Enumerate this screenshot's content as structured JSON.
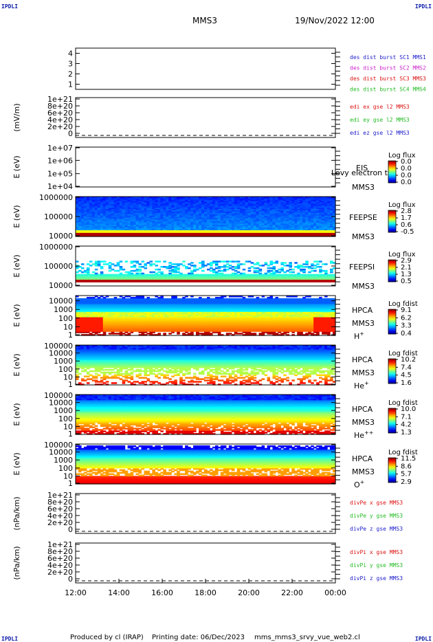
{
  "corner_tag": "IPDLI",
  "header": {
    "spacecraft": "MMS3",
    "datetime": "19/Nov/2022 12:00"
  },
  "footer": {
    "producer": "Produced by cl (IRAP)",
    "printing": "Printing date: 06/Dec/2023",
    "filename": "mms_mms3_srvy_vue_web2.cl"
  },
  "colors": {
    "blue": "#1a1acc",
    "magenta": "#cc22cc",
    "red": "#dd1111",
    "green": "#22bb22"
  },
  "chart_data": [
    {
      "type": "line",
      "panel": "burst",
      "yticks": [
        "4",
        "3",
        "2",
        "1"
      ],
      "ylim": [
        0.5,
        4.5
      ],
      "legend": [
        {
          "label": "des dist burst SC1 MMS1",
          "color": "#1a1acc"
        },
        {
          "label": "des dist burst SC2 MMS2",
          "color": "#cc22cc"
        },
        {
          "label": "des dist burst SC3 MMS3",
          "color": "#dd1111"
        },
        {
          "label": "des dist burst SC4 MMS4",
          "color": "#22bb22"
        }
      ],
      "series": []
    },
    {
      "type": "line",
      "panel": "edi",
      "ylabel": "(mV/m)",
      "yticks": [
        "1e+21",
        "8e+20",
        "6e+20",
        "4e+20",
        "2e+20",
        "0"
      ],
      "ylim": [
        0,
        1e+21
      ],
      "dashed_zero": true,
      "legend": [
        {
          "label": "edi ex gse l2 MMS3",
          "color": "#dd1111"
        },
        {
          "label": "edi ey gse l2 MMS3",
          "color": "#22bb22"
        },
        {
          "label": "edi ez gse l2 MMS3",
          "color": "#1a1acc"
        }
      ],
      "series": []
    },
    {
      "type": "heatmap",
      "panel": "eis",
      "ylabel": "E (eV)",
      "yticks": [
        "1e+07",
        "1e+06",
        "1e+05",
        "1e+04"
      ],
      "ylim": [
        10000,
        10000000
      ],
      "yscale": "log",
      "right_labels": [
        "EIS",
        "MMS3"
      ],
      "note": "Levy electron to",
      "colorbar": {
        "title": "Log flux",
        "values": [
          "0.0",
          "0.0",
          "0.0",
          "0.0"
        ]
      },
      "empty": true
    },
    {
      "type": "heatmap",
      "panel": "feepse",
      "ylabel": "E (eV)",
      "yticks": [
        "1000000",
        "100000",
        "10000"
      ],
      "ylim": [
        10000,
        1000000
      ],
      "yscale": "log",
      "right_labels": [
        "FEEPSE",
        "MMS3"
      ],
      "colorbar": {
        "title": "Log flux",
        "values": [
          "2.8",
          "1.7",
          "0.6",
          "-0.5"
        ]
      },
      "profile": "feepse"
    },
    {
      "type": "heatmap",
      "panel": "feepsi",
      "ylabel": "E (eV)",
      "yticks": [
        "1000000",
        "100000",
        "10000"
      ],
      "ylim": [
        10000,
        1000000
      ],
      "yscale": "log",
      "right_labels": [
        "FEEPSI",
        "MMS3"
      ],
      "colorbar": {
        "title": "Log flux",
        "values": [
          "2.9",
          "2.1",
          "1.3",
          "0.5"
        ]
      },
      "profile": "feepsi"
    },
    {
      "type": "heatmap",
      "panel": "hpca-h",
      "ylabel": "E (eV)",
      "yticks": [
        "10000",
        "1000",
        "100",
        "10",
        "1"
      ],
      "ylim": [
        1,
        40000
      ],
      "yscale": "log",
      "right_labels": [
        "HPCA",
        "MMS3"
      ],
      "species": "H",
      "species_sup": "+",
      "colorbar": {
        "title": "Log fdist",
        "values": [
          "9.1",
          "6.2",
          "3.3",
          "0.4"
        ]
      },
      "profile": "hpca_h"
    },
    {
      "type": "heatmap",
      "panel": "hpca-he",
      "ylabel": "E (eV)",
      "yticks": [
        "100000",
        "10000",
        "1000",
        "100",
        "10",
        "1"
      ],
      "ylim": [
        1,
        100000
      ],
      "yscale": "log",
      "right_labels": [
        "HPCA",
        "MMS3"
      ],
      "species": "He",
      "species_sup": "+",
      "colorbar": {
        "title": "Log fdist",
        "values": [
          "10.2",
          "7.4",
          "4.5",
          "1.6"
        ]
      },
      "profile": "hpca_he"
    },
    {
      "type": "heatmap",
      "panel": "hpca-hepp",
      "ylabel": "E (eV)",
      "yticks": [
        "100000",
        "10000",
        "1000",
        "100",
        "10",
        "1"
      ],
      "ylim": [
        1,
        100000
      ],
      "yscale": "log",
      "right_labels": [
        "HPCA",
        "MMS3"
      ],
      "species": "He",
      "species_sup": "++",
      "colorbar": {
        "title": "Log fdist",
        "values": [
          "10.0",
          "7.1",
          "4.2",
          "1.3"
        ]
      },
      "profile": "hpca_hepp"
    },
    {
      "type": "heatmap",
      "panel": "hpca-o",
      "ylabel": "E (eV)",
      "yticks": [
        "100000",
        "10000",
        "1000",
        "100",
        "10",
        "1"
      ],
      "ylim": [
        1,
        100000
      ],
      "yscale": "log",
      "right_labels": [
        "HPCA",
        "MMS3"
      ],
      "species": "O",
      "species_sup": "+",
      "colorbar": {
        "title": "Log fdist",
        "values": [
          "11.5",
          "8.6",
          "5.7",
          "2.9"
        ]
      },
      "profile": "hpca_o"
    },
    {
      "type": "line",
      "panel": "divpe",
      "ylabel": "(nPa/km)",
      "yticks": [
        "1e+21",
        "8e+20",
        "6e+20",
        "4e+20",
        "2e+20",
        "0"
      ],
      "ylim": [
        0,
        1e+21
      ],
      "dashed_zero": true,
      "legend": [
        {
          "label": "divPe x gse MMS3",
          "color": "#dd1111"
        },
        {
          "label": "divPe y gse MMS3",
          "color": "#22bb22"
        },
        {
          "label": "divPe z gse MMS3",
          "color": "#1a1acc"
        }
      ],
      "series": []
    },
    {
      "type": "line",
      "panel": "divpi",
      "ylabel": "(nPa/km)",
      "yticks": [
        "1e+21",
        "8e+20",
        "6e+20",
        "4e+20",
        "2e+20",
        "0"
      ],
      "ylim": [
        0,
        1e+21
      ],
      "dashed_zero": true,
      "legend": [
        {
          "label": "divPi x gse MMS3",
          "color": "#dd1111"
        },
        {
          "label": "divPi y gse MMS3",
          "color": "#22bb22"
        },
        {
          "label": "divPi z gse MMS3",
          "color": "#1a1acc"
        }
      ],
      "series": []
    }
  ],
  "time_axis": {
    "ticks": [
      "12:00",
      "14:00",
      "16:00",
      "18:00",
      "20:00",
      "22:00",
      "00:00"
    ],
    "range_hours": [
      12,
      24
    ]
  }
}
